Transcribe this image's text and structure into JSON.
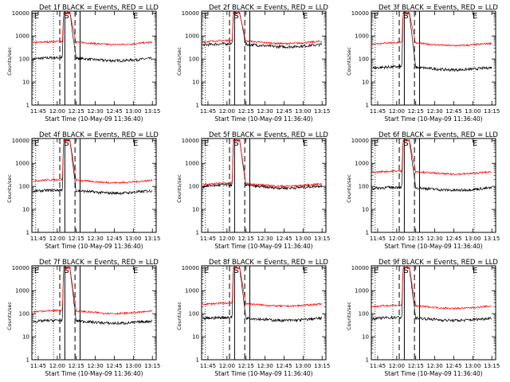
{
  "chart_data": [
    {
      "type": "line",
      "title": "Det 1f BLACK = Events, RED = LLD",
      "ylabel": "Counts/sec",
      "xlabel": "Start Time (10-May-09 11:36:40)",
      "x_ticks": [
        "11:45",
        "12:00",
        "12:15",
        "12:30",
        "12:45",
        "13:00",
        "13:15"
      ],
      "y_ticks": [
        "1",
        "10",
        "100",
        "1000",
        "10000"
      ],
      "yscale": "log",
      "ylim": [
        1,
        12000
      ],
      "xlim": [
        "11:40",
        "13:18"
      ],
      "markers": {
        "E_left": "E",
        "S": "S",
        "E_right": "E"
      },
      "series": [
        {
          "name": "Events",
          "color": "#000000",
          "base": 100,
          "peak": 10000
        },
        {
          "name": "LLD",
          "color": "#ff0000",
          "base": 500,
          "peak": 10000
        }
      ]
    },
    {
      "type": "line",
      "title": "Det 2f BLACK = Events, RED = LLD",
      "ylabel": "Counts/sec",
      "xlabel": "Start Time (10-May-09 11:36:40)",
      "x_ticks": [
        "11:45",
        "12:00",
        "12:15",
        "12:30",
        "12:45",
        "13:00",
        "13:15"
      ],
      "y_ticks": [
        "1",
        "10",
        "100",
        "1000",
        "10000"
      ],
      "yscale": "log",
      "ylim": [
        1,
        12000
      ],
      "xlim": [
        "11:40",
        "13:18"
      ],
      "markers": {
        "E_left": "E",
        "S": "S",
        "E_right": "E"
      },
      "series": [
        {
          "name": "Events",
          "color": "#000000",
          "base": 400,
          "peak": 10000
        },
        {
          "name": "LLD",
          "color": "#ff0000",
          "base": 550,
          "peak": 10000
        }
      ]
    },
    {
      "type": "line",
      "title": "Det 3f BLACK = Events, RED = LLD",
      "ylabel": "Counts/sec",
      "xlabel": "Start Time (10-May-09 11:36:40)",
      "x_ticks": [
        "11:45",
        "12:00",
        "12:15",
        "12:30",
        "12:45",
        "13:00",
        "13:15"
      ],
      "y_ticks": [
        "1",
        "10",
        "100",
        "1000",
        "10000"
      ],
      "yscale": "log",
      "ylim": [
        1,
        12000
      ],
      "xlim": [
        "11:40",
        "13:18"
      ],
      "markers": {
        "E_left": "E",
        "S": "S",
        "E_right": "E"
      },
      "series": [
        {
          "name": "Events",
          "color": "#000000",
          "base": 40,
          "peak": 10000
        },
        {
          "name": "LLD",
          "color": "#ff0000",
          "base": 450,
          "peak": 10000
        }
      ]
    },
    {
      "type": "line",
      "title": "Det 4f BLACK = Events, RED = LLD",
      "ylabel": "Counts/sec",
      "xlabel": "Start Time (10-May-09 11:36:40)",
      "x_ticks": [
        "11:45",
        "12:00",
        "12:15",
        "12:30",
        "12:45",
        "13:00",
        "13:15"
      ],
      "y_ticks": [
        "1",
        "10",
        "100",
        "1000",
        "10000"
      ],
      "yscale": "log",
      "ylim": [
        1,
        12000
      ],
      "xlim": [
        "11:40",
        "13:18"
      ],
      "markers": {
        "E_left": "E",
        "S": "S",
        "E_right": "E"
      },
      "series": [
        {
          "name": "Events",
          "color": "#000000",
          "base": 60,
          "peak": 10000
        },
        {
          "name": "LLD",
          "color": "#ff0000",
          "base": 170,
          "peak": 10000
        }
      ]
    },
    {
      "type": "line",
      "title": "Det 5f BLACK = Events, RED = LLD",
      "ylabel": "Counts/sec",
      "xlabel": "Start Time (10-May-09 11:36:40)",
      "x_ticks": [
        "11:45",
        "12:00",
        "12:15",
        "12:30",
        "12:45",
        "13:00",
        "13:15"
      ],
      "y_ticks": [
        "1",
        "10",
        "100",
        "1000",
        "10000"
      ],
      "yscale": "log",
      "ylim": [
        1,
        12000
      ],
      "xlim": [
        "11:40",
        "13:18"
      ],
      "markers": {
        "E_left": "E",
        "S": "S",
        "E_right": "E"
      },
      "series": [
        {
          "name": "Events",
          "color": "#000000",
          "base": 100,
          "peak": 10000
        },
        {
          "name": "LLD",
          "color": "#ff0000",
          "base": 120,
          "peak": 10000
        }
      ]
    },
    {
      "type": "line",
      "title": "Det 6f BLACK = Events, RED = LLD",
      "ylabel": "Counts/sec",
      "xlabel": "Start Time (10-May-09 11:36:40)",
      "x_ticks": [
        "11:45",
        "12:00",
        "12:15",
        "12:30",
        "12:45",
        "13:00",
        "13:15"
      ],
      "y_ticks": [
        "1",
        "10",
        "100",
        "1000",
        "10000"
      ],
      "yscale": "log",
      "ylim": [
        1,
        12000
      ],
      "xlim": [
        "11:40",
        "13:18"
      ],
      "markers": {
        "E_left": "E",
        "S": "S",
        "E_right": "E"
      },
      "series": [
        {
          "name": "Events",
          "color": "#000000",
          "base": 80,
          "peak": 10000
        },
        {
          "name": "LLD",
          "color": "#ff0000",
          "base": 400,
          "peak": 10000
        }
      ]
    },
    {
      "type": "line",
      "title": "Det 7f BLACK = Events, RED = LLD",
      "ylabel": "Counts/sec",
      "xlabel": "Start Time (10-May-09 11:36:40)",
      "x_ticks": [
        "11:45",
        "12:00",
        "12:15",
        "12:30",
        "12:45",
        "13:00",
        "13:15"
      ],
      "y_ticks": [
        "1",
        "10",
        "100",
        "1000",
        "10000"
      ],
      "yscale": "log",
      "ylim": [
        1,
        12000
      ],
      "xlim": [
        "11:40",
        "13:18"
      ],
      "markers": {
        "E_left": "E",
        "S": "S",
        "E_right": "E"
      },
      "series": [
        {
          "name": "Events",
          "color": "#000000",
          "base": 45,
          "peak": 10000
        },
        {
          "name": "LLD",
          "color": "#ff0000",
          "base": 120,
          "peak": 10000
        }
      ]
    },
    {
      "type": "line",
      "title": "Det 8f BLACK = Events, RED = LLD",
      "ylabel": "Counts/sec",
      "xlabel": "Start Time (10-May-09 11:36:40)",
      "x_ticks": [
        "11:45",
        "12:00",
        "12:15",
        "12:30",
        "12:45",
        "13:00",
        "13:15"
      ],
      "y_ticks": [
        "1",
        "10",
        "100",
        "1000",
        "10000"
      ],
      "yscale": "log",
      "ylim": [
        1,
        12000
      ],
      "xlim": [
        "11:40",
        "13:18"
      ],
      "markers": {
        "E_left": "E",
        "S": "S",
        "E_right": "E"
      },
      "series": [
        {
          "name": "Events",
          "color": "#000000",
          "base": 60,
          "peak": 10000
        },
        {
          "name": "LLD",
          "color": "#ff0000",
          "base": 250,
          "peak": 10000
        }
      ]
    },
    {
      "type": "line",
      "title": "Det 9f BLACK = Events, RED = LLD",
      "ylabel": "Counts/sec",
      "xlabel": "Start Time (10-May-09 11:36:40)",
      "x_ticks": [
        "11:45",
        "12:00",
        "12:15",
        "12:30",
        "12:45",
        "13:00",
        "13:15"
      ],
      "y_ticks": [
        "1",
        "10",
        "100",
        "1000",
        "10000"
      ],
      "yscale": "log",
      "ylim": [
        1,
        12000
      ],
      "xlim": [
        "11:40",
        "13:18"
      ],
      "markers": {
        "E_left": "E",
        "S": "S",
        "E_right": "E"
      },
      "series": [
        {
          "name": "Events",
          "color": "#000000",
          "base": 60,
          "peak": 10000
        },
        {
          "name": "LLD",
          "color": "#ff0000",
          "base": 200,
          "peak": 10000
        }
      ]
    }
  ]
}
